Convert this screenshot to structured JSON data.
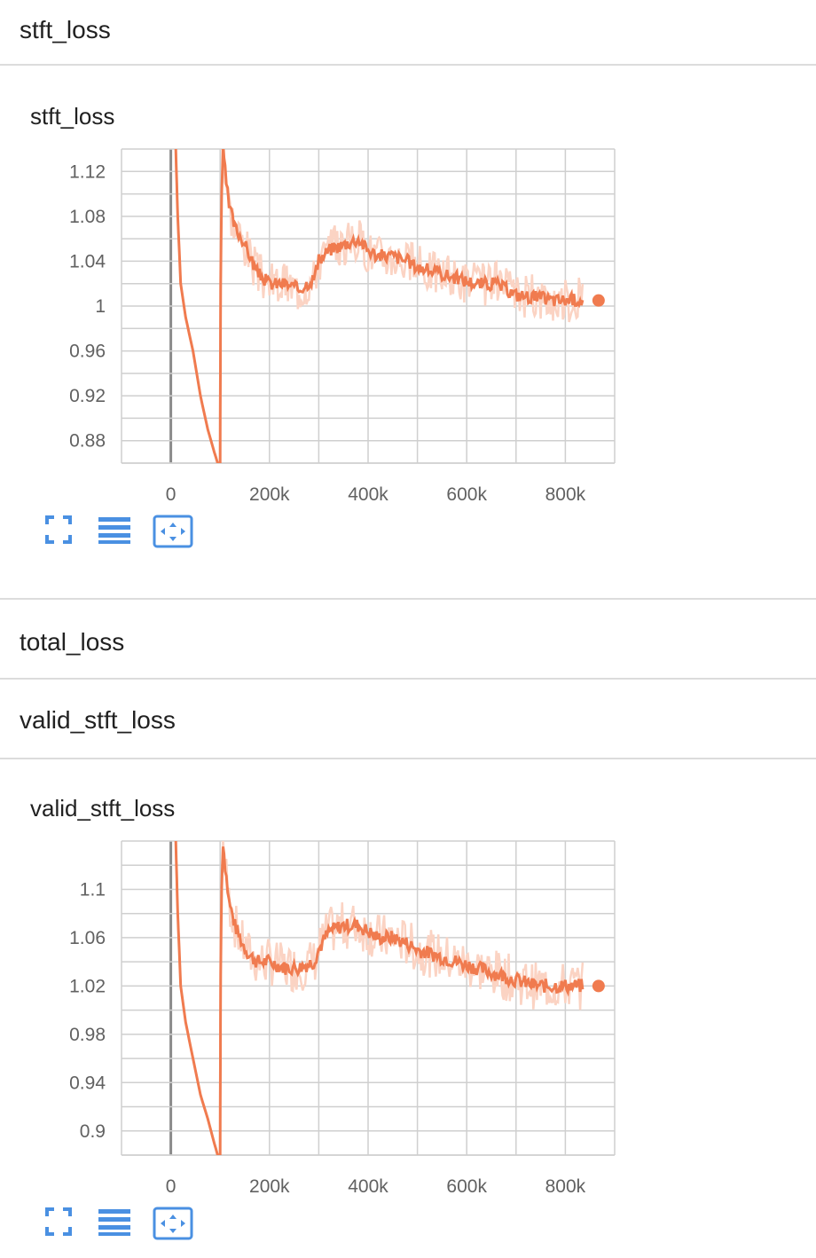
{
  "sections": {
    "s1": "stft_loss",
    "s2": "total_loss",
    "s3": "valid_stft_loss"
  },
  "cards": {
    "c1": "stft_loss",
    "c2": "valid_stft_loss"
  },
  "toolbar_icons": [
    "fullscreen-icon",
    "data-table-icon",
    "fit-domain-icon"
  ],
  "colors": {
    "line": "#f07b4f",
    "raw": "#fbd3c3",
    "grid": "#cfcfcf",
    "zero": "#8a8a8a",
    "icon": "#4a90e2"
  },
  "chart_data": [
    {
      "type": "line",
      "title": "stft_loss",
      "xlim": [
        -100000,
        900000
      ],
      "ylim": [
        0.86,
        1.14
      ],
      "xticks": [
        0,
        200000,
        400000,
        600000,
        800000
      ],
      "xtick_labels": [
        "0",
        "200k",
        "400k",
        "600k",
        "800k"
      ],
      "yticks": [
        0.88,
        0.92,
        0.96,
        1.0,
        1.04,
        1.08,
        1.12
      ],
      "ytick_labels": [
        "0.88",
        "0.92",
        "0.96",
        "1",
        "1.04",
        "1.08",
        "1.12"
      ],
      "series": [
        {
          "x": [
            10000,
            14000,
            20000,
            30000,
            45000,
            60000,
            75000,
            88000,
            95000,
            100000,
            101000,
            103000,
            106000,
            110000,
            118000,
            130000,
            145000,
            160000,
            175000,
            200000,
            230000,
            260000,
            290000,
            300000,
            320000,
            350000,
            380000,
            400000,
            420000,
            450000,
            480000,
            500000,
            540000,
            580000,
            620000,
            660000,
            700000,
            740000,
            780000,
            820000,
            835000
          ],
          "y": [
            1.14,
            1.08,
            1.02,
            0.99,
            0.96,
            0.92,
            0.89,
            0.87,
            0.86,
            0.86,
            1.02,
            1.1,
            1.14,
            1.12,
            1.09,
            1.07,
            1.06,
            1.045,
            1.03,
            1.02,
            1.02,
            1.015,
            1.025,
            1.04,
            1.05,
            1.055,
            1.06,
            1.05,
            1.045,
            1.045,
            1.04,
            1.035,
            1.03,
            1.025,
            1.02,
            1.02,
            1.01,
            1.008,
            1.005,
            1.006,
            1.005
          ]
        }
      ]
    },
    {
      "type": "line",
      "title": "valid_stft_loss",
      "xlim": [
        -100000,
        900000
      ],
      "ylim": [
        0.88,
        1.14
      ],
      "xticks": [
        0,
        200000,
        400000,
        600000,
        800000
      ],
      "xtick_labels": [
        "0",
        "200k",
        "400k",
        "600k",
        "800k"
      ],
      "yticks": [
        0.9,
        0.94,
        0.98,
        1.02,
        1.06,
        1.1
      ],
      "ytick_labels": [
        "0.9",
        "0.94",
        "0.98",
        "1.02",
        "1.06",
        "1.1"
      ],
      "series": [
        {
          "x": [
            10000,
            14000,
            20000,
            30000,
            45000,
            60000,
            75000,
            88000,
            95000,
            100000,
            101000,
            103000,
            106000,
            110000,
            118000,
            130000,
            145000,
            160000,
            175000,
            200000,
            230000,
            260000,
            290000,
            300000,
            320000,
            350000,
            380000,
            400000,
            420000,
            450000,
            480000,
            500000,
            540000,
            580000,
            620000,
            660000,
            700000,
            740000,
            780000,
            820000,
            835000
          ],
          "y": [
            1.14,
            1.08,
            1.02,
            0.99,
            0.96,
            0.93,
            0.91,
            0.89,
            0.88,
            0.88,
            1.03,
            1.1,
            1.14,
            1.12,
            1.09,
            1.07,
            1.055,
            1.045,
            1.04,
            1.04,
            1.035,
            1.035,
            1.04,
            1.05,
            1.065,
            1.07,
            1.07,
            1.065,
            1.06,
            1.06,
            1.055,
            1.05,
            1.045,
            1.04,
            1.035,
            1.03,
            1.025,
            1.02,
            1.02,
            1.02,
            1.02
          ]
        }
      ]
    }
  ]
}
